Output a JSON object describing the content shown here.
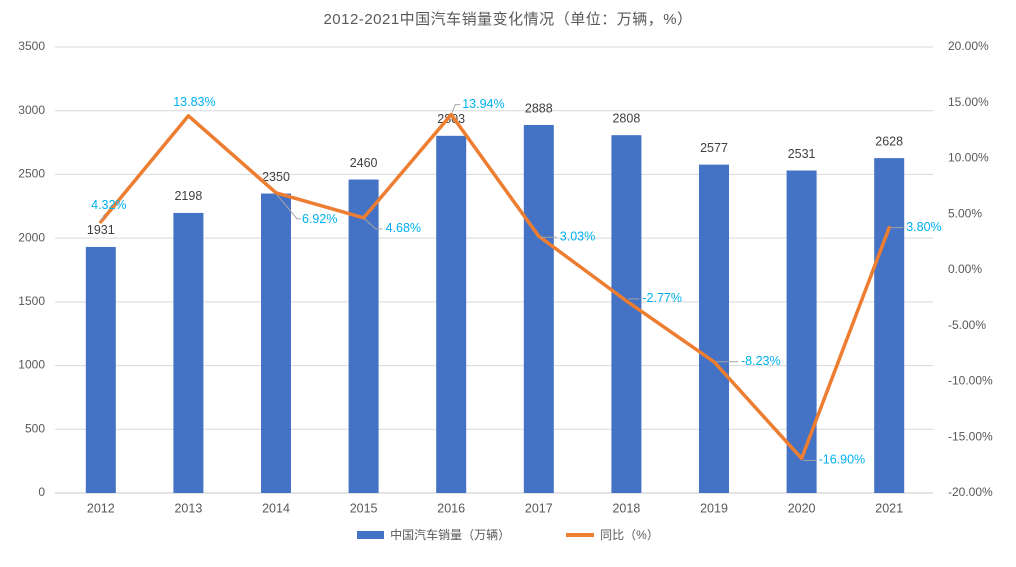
{
  "title": "2012-2021中国汽车销量变化情况（单位：万辆，%）",
  "legend": {
    "bar_label": "中国汽车销量（万辆）",
    "line_label": "同比（%）"
  },
  "colors": {
    "bar": "#4472C4",
    "line": "#ED7D31",
    "percent_label": "#00B0F0",
    "bar_value_label": "#404040",
    "axis_text": "#595959",
    "gridline": "#D9D9D9",
    "axis_line": "#C9C9C9",
    "leader": "#A6A6A6",
    "background": "#ffffff"
  },
  "chart_data": {
    "type": "bar",
    "subtype": "bar+line combo, dual axis",
    "title": "2012-2021中国汽车销量变化情况（单位：万辆，%）",
    "categories": [
      "2012",
      "2013",
      "2014",
      "2015",
      "2016",
      "2017",
      "2018",
      "2019",
      "2020",
      "2021"
    ],
    "series": [
      {
        "name": "中国汽车销量（万辆）",
        "type": "bar",
        "axis": "left",
        "color": "#4472C4",
        "values": [
          1931,
          2198,
          2350,
          2460,
          2803,
          2888,
          2808,
          2577,
          2531,
          2628
        ],
        "labels": [
          "1931",
          "2198",
          "2350",
          "2460",
          "2803",
          "2888",
          "2808",
          "2577",
          "2531",
          "2628"
        ]
      },
      {
        "name": "同比（%）",
        "type": "line",
        "axis": "right",
        "color": "#ED7D31",
        "values": [
          4.32,
          13.83,
          6.92,
          4.68,
          13.94,
          3.03,
          -2.77,
          -8.23,
          -16.9,
          3.8
        ],
        "labels": [
          "4.32%",
          "13.83%",
          "6.92%",
          "4.68%",
          "13.94%",
          "3.03%",
          "-2.77%",
          "-8.23%",
          "-16.90%",
          "3.80%"
        ],
        "label_color": "#00B0F0"
      }
    ],
    "axes": {
      "left": {
        "min": 0,
        "max": 3500,
        "step": 500,
        "tick_labels": [
          "0",
          "500",
          "1000",
          "1500",
          "2000",
          "2500",
          "3000",
          "3500"
        ]
      },
      "right": {
        "min": -20,
        "max": 20,
        "step": 5,
        "tick_labels": [
          "-20.00%",
          "-15.00%",
          "-10.00%",
          "-5.00%",
          "0.00%",
          "5.00%",
          "10.00%",
          "15.00%",
          "20.00%"
        ]
      }
    },
    "xlabel": "",
    "ylabel": "",
    "grid": true,
    "legend_position": "bottom"
  }
}
